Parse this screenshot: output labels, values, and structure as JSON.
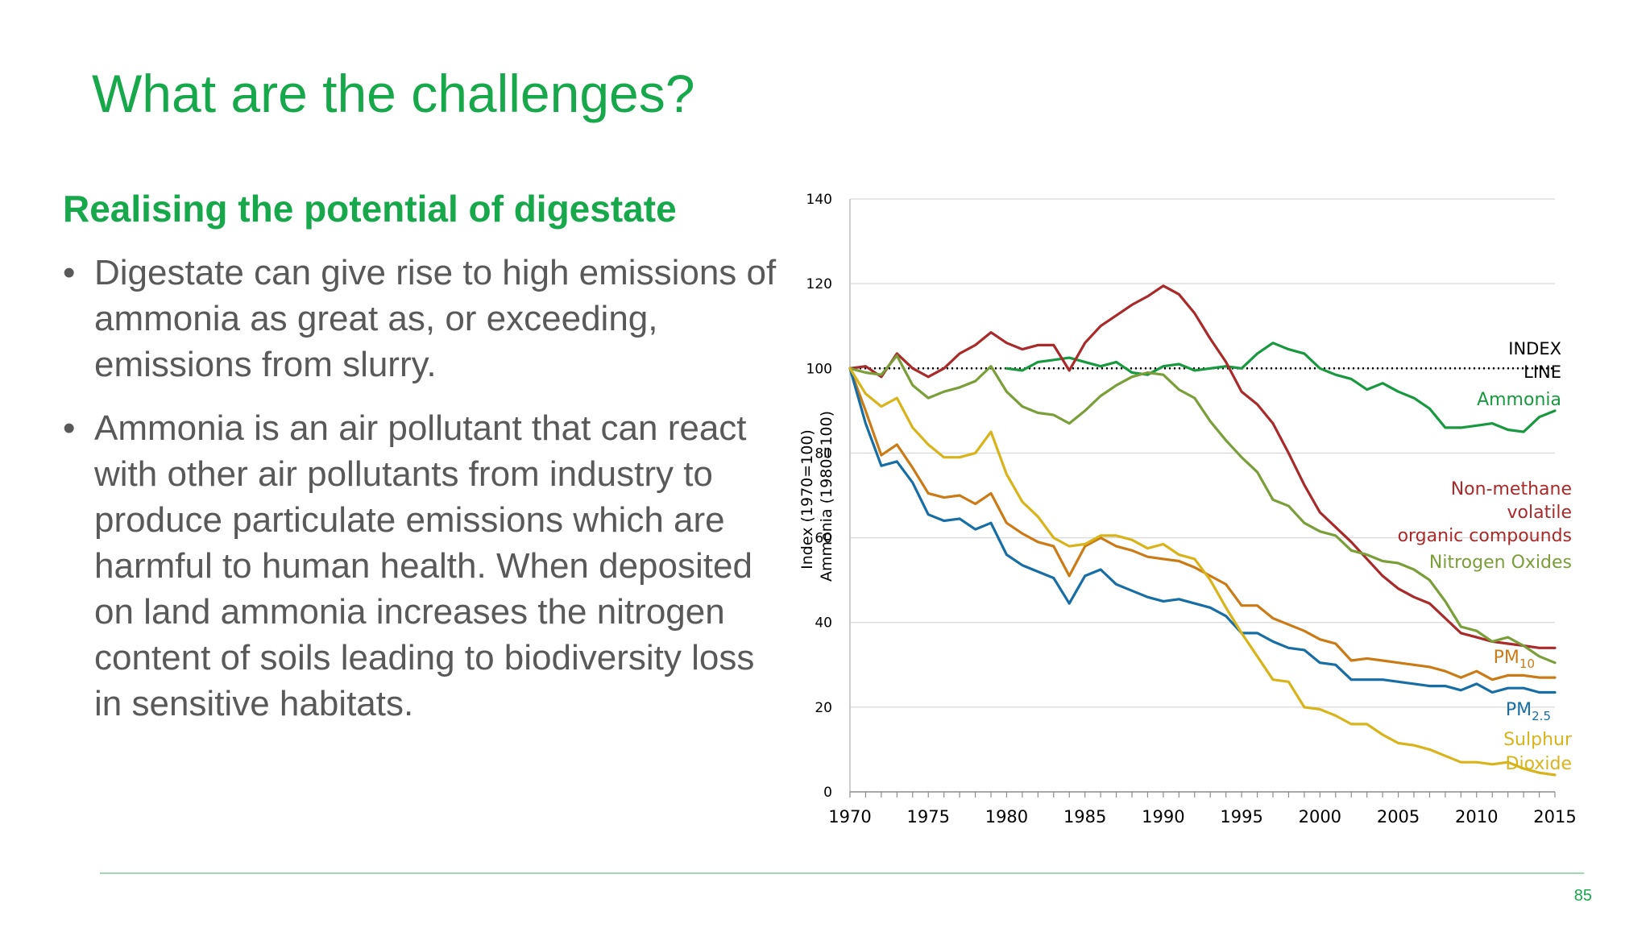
{
  "slide": {
    "title": "What are the challenges?",
    "subtitle": "Realising the potential of digestate",
    "bullets": [
      "Digestate can give rise to high emissions of ammonia as great as, or exceeding, emissions from slurry.",
      "Ammonia is an air pollutant that can react with other air pollutants from industry to produce particulate emissions which are harmful to human health. When deposited on land ammonia increases the nitrogen content of soils leading to biodiversity loss in sensitive habitats."
    ],
    "bullet_mark": "•",
    "page_number": "85"
  },
  "colors": {
    "title": "#17a84b",
    "body_text": "#595959"
  },
  "chart_data": {
    "type": "line",
    "ylabel": [
      "Index (1970=100)",
      "Ammonia (1980=100)"
    ],
    "xlim": [
      1970,
      2015
    ],
    "ylim": [
      0,
      140
    ],
    "x_ticks": [
      1970,
      1975,
      1980,
      1985,
      1990,
      1995,
      2000,
      2005,
      2010,
      2015
    ],
    "y_ticks": [
      0,
      20,
      40,
      60,
      80,
      100,
      120,
      140
    ],
    "grid": "horizontal",
    "index_line": {
      "value": 100,
      "label": [
        "INDEX",
        "LINE"
      ],
      "color": "#000000"
    },
    "series": [
      {
        "name": "Ammonia",
        "color": "#18993f",
        "label_lines": [
          "Ammonia"
        ],
        "x": [
          1980,
          1981,
          1982,
          1983,
          1984,
          1985,
          1986,
          1987,
          1988,
          1989,
          1990,
          1991,
          1992,
          1993,
          1994,
          1995,
          1996,
          1997,
          1998,
          1999,
          2000,
          2001,
          2002,
          2003,
          2004,
          2005,
          2006,
          2007,
          2008,
          2009,
          2010,
          2011,
          2012,
          2013,
          2014,
          2015
        ],
        "values": [
          100,
          99.5,
          101.5,
          102,
          102.5,
          101.5,
          100.5,
          101.5,
          99,
          98.5,
          100.5,
          101,
          99.5,
          100,
          100.5,
          100,
          103.5,
          106,
          104.5,
          103.5,
          100,
          98.5,
          97.5,
          95,
          96.5,
          94.5,
          93,
          90.5,
          86,
          86,
          86.5,
          87,
          85.5,
          85,
          88.5,
          90
        ]
      },
      {
        "name": "Non-methane volatile organic compounds",
        "color": "#a92a2a",
        "label_lines": [
          "Non-methane",
          "volatile",
          "organic compounds"
        ],
        "x": [
          1970,
          1971,
          1972,
          1973,
          1974,
          1975,
          1976,
          1977,
          1978,
          1979,
          1980,
          1981,
          1982,
          1983,
          1984,
          1985,
          1986,
          1987,
          1988,
          1989,
          1990,
          1991,
          1992,
          1993,
          1994,
          1995,
          1996,
          1997,
          1998,
          1999,
          2000,
          2001,
          2002,
          2003,
          2004,
          2005,
          2006,
          2007,
          2008,
          2009,
          2010,
          2011,
          2012,
          2013,
          2014,
          2015
        ],
        "values": [
          100,
          100.5,
          98,
          103.5,
          100,
          98,
          100,
          103.5,
          105.5,
          108.5,
          106,
          104.5,
          105.5,
          105.5,
          99.5,
          106,
          110,
          112.5,
          115,
          117,
          119.5,
          117.5,
          113,
          107,
          101.5,
          94.5,
          91.5,
          87,
          80,
          72.5,
          66,
          62.5,
          59,
          55,
          51,
          48,
          46,
          44.5,
          41,
          37.5,
          36.5,
          35.5,
          35,
          34.5,
          34,
          34
        ]
      },
      {
        "name": "Nitrogen Oxides",
        "color": "#7a9e38",
        "label_lines": [
          "Nitrogen Oxides"
        ],
        "x": [
          1970,
          1971,
          1972,
          1973,
          1974,
          1975,
          1976,
          1977,
          1978,
          1979,
          1980,
          1981,
          1982,
          1983,
          1984,
          1985,
          1986,
          1987,
          1988,
          1989,
          1990,
          1991,
          1992,
          1993,
          1994,
          1995,
          1996,
          1997,
          1998,
          1999,
          2000,
          2001,
          2002,
          2003,
          2004,
          2005,
          2006,
          2007,
          2008,
          2009,
          2010,
          2011,
          2012,
          2013,
          2014,
          2015
        ],
        "values": [
          100,
          99,
          98.5,
          103,
          96,
          93,
          94.5,
          95.5,
          97,
          100.5,
          94.5,
          91,
          89.5,
          89,
          87,
          90,
          93.5,
          96,
          98,
          99,
          98.5,
          95,
          93,
          87.5,
          83,
          79,
          75.5,
          69,
          67.5,
          63.5,
          61.5,
          60.5,
          57,
          56,
          54.5,
          54,
          52.5,
          50,
          45,
          39,
          38,
          35.5,
          36.5,
          34.5,
          32,
          30.5
        ]
      },
      {
        "name": "PM10",
        "color": "#cb7b16",
        "label_lines": [
          "PM10"
        ],
        "x": [
          1970,
          1971,
          1972,
          1973,
          1974,
          1975,
          1976,
          1977,
          1978,
          1979,
          1980,
          1981,
          1982,
          1983,
          1984,
          1985,
          1986,
          1987,
          1988,
          1989,
          1990,
          1991,
          1992,
          1993,
          1994,
          1995,
          1996,
          1997,
          1998,
          1999,
          2000,
          2001,
          2002,
          2003,
          2004,
          2005,
          2006,
          2007,
          2008,
          2009,
          2010,
          2011,
          2012,
          2013,
          2014,
          2015
        ],
        "values": [
          100,
          90,
          79.5,
          82,
          76.5,
          70.5,
          69.5,
          70,
          68,
          70.5,
          63.5,
          61,
          59,
          58,
          51,
          58,
          60,
          58,
          57,
          55.5,
          55,
          54.5,
          53,
          51,
          49,
          44,
          44,
          41,
          39.5,
          38,
          36,
          35,
          31,
          31.5,
          31,
          30.5,
          30,
          29.5,
          28.5,
          27,
          28.5,
          26.5,
          27.5,
          27.5,
          27,
          27
        ]
      },
      {
        "name": "PM2.5",
        "color": "#176ea4",
        "label_lines": [
          "PM2.5"
        ],
        "x": [
          1970,
          1971,
          1972,
          1973,
          1974,
          1975,
          1976,
          1977,
          1978,
          1979,
          1980,
          1981,
          1982,
          1983,
          1984,
          1985,
          1986,
          1987,
          1988,
          1989,
          1990,
          1991,
          1992,
          1993,
          1994,
          1995,
          1996,
          1997,
          1998,
          1999,
          2000,
          2001,
          2002,
          2003,
          2004,
          2005,
          2006,
          2007,
          2008,
          2009,
          2010,
          2011,
          2012,
          2013,
          2014,
          2015
        ],
        "values": [
          100,
          87,
          77,
          78,
          73,
          65.5,
          64,
          64.5,
          62,
          63.5,
          56,
          53.5,
          52,
          50.5,
          44.5,
          51,
          52.5,
          49,
          47.5,
          46,
          45,
          45.5,
          44.5,
          43.5,
          41.5,
          37.5,
          37.5,
          35.5,
          34,
          33.5,
          30.5,
          30,
          26.5,
          26.5,
          26.5,
          26,
          25.5,
          25,
          25,
          24,
          25.5,
          23.5,
          24.5,
          24.5,
          23.5,
          23.5
        ]
      },
      {
        "name": "Sulphur Dioxide",
        "color": "#d8b41a",
        "label_lines": [
          "Sulphur",
          "Dioxide"
        ],
        "x": [
          1970,
          1971,
          1972,
          1973,
          1974,
          1975,
          1976,
          1977,
          1978,
          1979,
          1980,
          1981,
          1982,
          1983,
          1984,
          1985,
          1986,
          1987,
          1988,
          1989,
          1990,
          1991,
          1992,
          1993,
          1994,
          1995,
          1996,
          1997,
          1998,
          1999,
          2000,
          2001,
          2002,
          2003,
          2004,
          2005,
          2006,
          2007,
          2008,
          2009,
          2010,
          2011,
          2012,
          2013,
          2014,
          2015
        ],
        "values": [
          100,
          94,
          91,
          93,
          86,
          82,
          79,
          79,
          80,
          85,
          75,
          68.5,
          65,
          60,
          58,
          58.5,
          60.5,
          60.5,
          59.5,
          57.5,
          58.5,
          56,
          55,
          50,
          43.5,
          37.5,
          32,
          26.5,
          26,
          20,
          19.5,
          18,
          16,
          16,
          13.5,
          11.5,
          11,
          10,
          8.5,
          7,
          7,
          6.5,
          7,
          5.5,
          4.5,
          4
        ]
      }
    ]
  }
}
